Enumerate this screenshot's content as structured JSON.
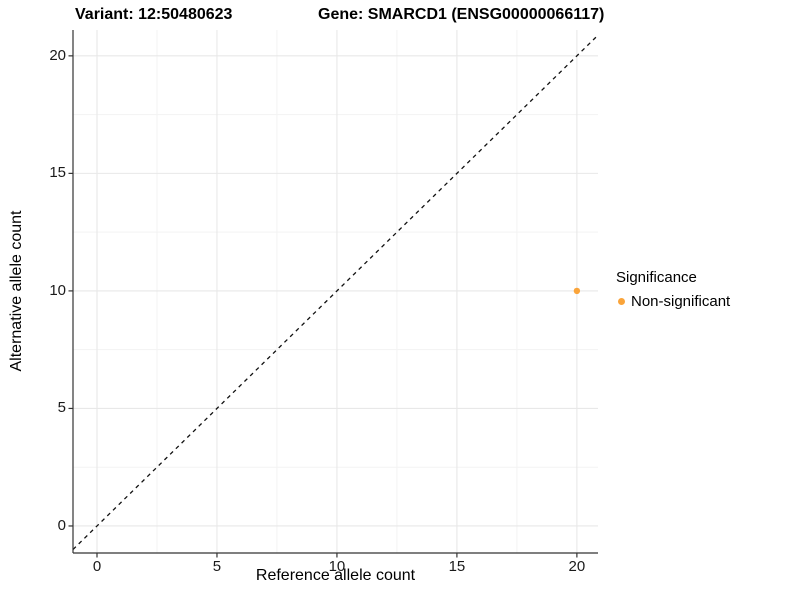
{
  "chart_data": {
    "type": "scatter",
    "titles": {
      "left": "Variant: 12:50480623",
      "right": "Gene: SMARCD1 (ENSG00000066117)"
    },
    "xlabel": "Reference allele count",
    "ylabel": "Alternative allele count",
    "xlim": [
      -1.0,
      20.88
    ],
    "ylim": [
      -1.15,
      21.1
    ],
    "x_ticks": [
      0,
      5,
      10,
      15,
      20
    ],
    "y_ticks": [
      0,
      5,
      10,
      15,
      20
    ],
    "minor_grid_step": 2.5,
    "grid": true,
    "points": [
      {
        "x": 20,
        "y": 10,
        "series": "Non-significant"
      }
    ],
    "reference_line": {
      "equation": "y = x",
      "style": "dashed",
      "color": "#111111"
    },
    "legend": {
      "title": "Significance",
      "position": "right",
      "items": [
        {
          "label": "Non-significant",
          "color": "#FAA43A"
        }
      ]
    },
    "colors": {
      "point": "#FAA43A",
      "grid_major": "#E8E8E8",
      "grid_minor": "#F3F3F3",
      "axis": "#333333",
      "text": "#1a1a1a"
    }
  }
}
